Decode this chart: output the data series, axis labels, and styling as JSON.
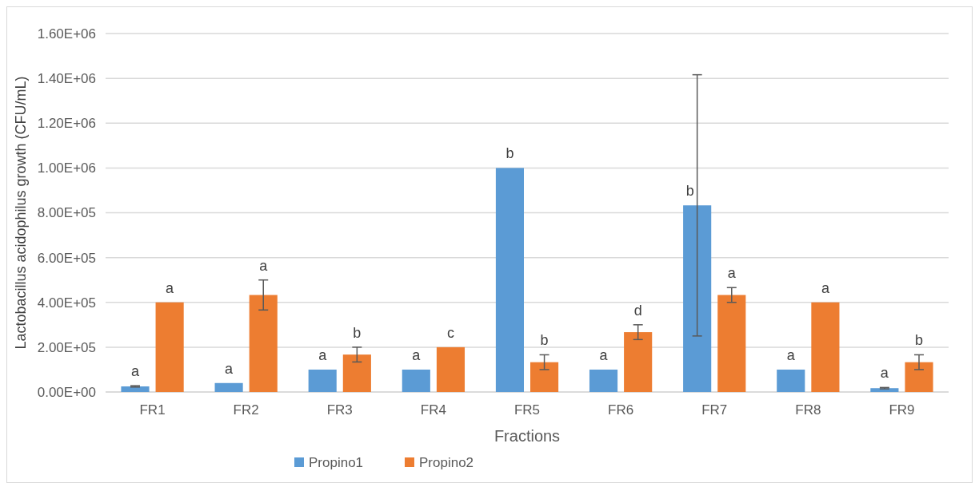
{
  "chart_data": {
    "type": "bar",
    "xlabel": "Fractions",
    "ylabel": "Lactobacillus acidophilus growth (CFU/mL)",
    "categories": [
      "FR1",
      "FR2",
      "FR3",
      "FR4",
      "FR5",
      "FR6",
      "FR7",
      "FR8",
      "FR9"
    ],
    "series": [
      {
        "name": "Propino1",
        "color": "#5b9bd5",
        "values": [
          25000,
          40000,
          100000,
          100000,
          1000000,
          100000,
          833000,
          100000,
          17000
        ],
        "errors": [
          3000,
          null,
          null,
          null,
          null,
          null,
          583000,
          null,
          3000
        ],
        "value_labels": [
          "a",
          "a",
          "a",
          "a",
          "b",
          "a",
          "b",
          "a",
          "a"
        ]
      },
      {
        "name": "Propino2",
        "color": "#ed7d31",
        "values": [
          400000,
          433000,
          167000,
          200000,
          133000,
          267000,
          433000,
          400000,
          133000
        ],
        "errors": [
          null,
          67000,
          33000,
          null,
          33000,
          33000,
          33000,
          null,
          33000
        ],
        "value_labels": [
          "a",
          "a",
          "b",
          "c",
          "b",
          "d",
          "a",
          "a",
          "b"
        ]
      }
    ],
    "ylim": [
      0,
      1600000
    ],
    "yticks": [
      {
        "value": 0,
        "label": "0.00E+00"
      },
      {
        "value": 200000,
        "label": "2.00E+05"
      },
      {
        "value": 400000,
        "label": "4.00E+05"
      },
      {
        "value": 600000,
        "label": "6.00E+05"
      },
      {
        "value": 800000,
        "label": "8.00E+05"
      },
      {
        "value": 1000000,
        "label": "1.00E+06"
      },
      {
        "value": 1200000,
        "label": "1.20E+06"
      },
      {
        "value": 1400000,
        "label": "1.40E+06"
      },
      {
        "value": 1600000,
        "label": "1.60E+06"
      }
    ],
    "grid": "y",
    "legend": "bottom"
  }
}
